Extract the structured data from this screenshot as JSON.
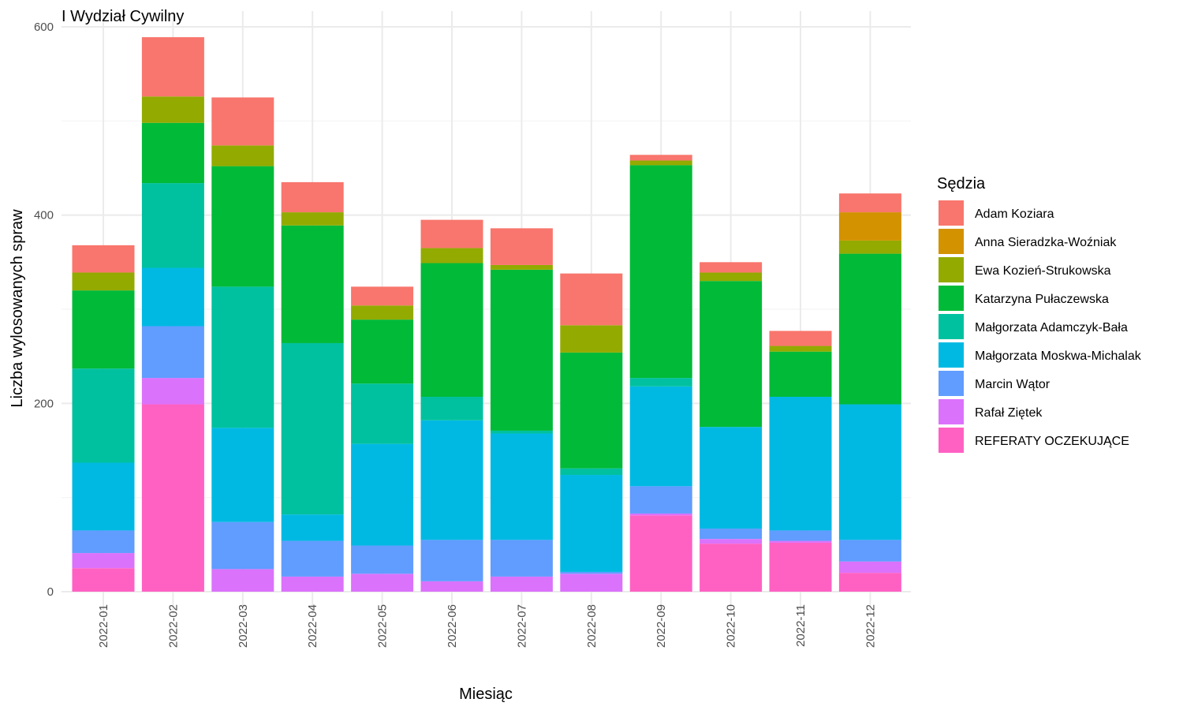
{
  "chart_data": {
    "type": "bar",
    "stacked": true,
    "title": "I Wydział Cywilny",
    "xlabel": "Miesiąc",
    "ylabel": "Liczba wylosowanych spraw",
    "ylim": [
      0,
      600
    ],
    "yticks": [
      0,
      200,
      400,
      600
    ],
    "grid": true,
    "legend_position": "right",
    "legend_title": "Sędzia",
    "categories": [
      "2022-01",
      "2022-02",
      "2022-03",
      "2022-04",
      "2022-05",
      "2022-06",
      "2022-07",
      "2022-08",
      "2022-09",
      "2022-10",
      "2022-11",
      "2022-12"
    ],
    "series": [
      {
        "name": "Adam Koziara",
        "color": "#F8766D",
        "values": [
          29,
          63,
          51,
          32,
          20,
          30,
          39,
          55,
          6,
          11,
          16,
          20
        ]
      },
      {
        "name": "Anna Sieradzka-Woźniak",
        "color": "#D39200",
        "values": [
          0,
          0,
          0,
          0,
          0,
          0,
          0,
          0,
          0,
          0,
          0,
          30
        ]
      },
      {
        "name": "Ewa Kozień-Strukowska",
        "color": "#93AA00",
        "values": [
          19,
          28,
          22,
          14,
          15,
          16,
          5,
          29,
          5,
          9,
          6,
          14
        ]
      },
      {
        "name": "Katarzyna Pułaczewska",
        "color": "#00BA38",
        "values": [
          83,
          64,
          128,
          125,
          68,
          142,
          171,
          123,
          226,
          155,
          48,
          160
        ]
      },
      {
        "name": "Małgorzata Adamczyk-Bała",
        "color": "#00C19F",
        "values": [
          100,
          90,
          150,
          182,
          64,
          25,
          3,
          7,
          9,
          0,
          0,
          0
        ]
      },
      {
        "name": "Małgorzata Moskwa-Michalak",
        "color": "#00B9E3",
        "values": [
          72,
          62,
          100,
          28,
          108,
          127,
          113,
          103,
          106,
          108,
          142,
          144
        ]
      },
      {
        "name": "Marcin Wątor",
        "color": "#619CFF",
        "values": [
          24,
          55,
          50,
          38,
          30,
          44,
          39,
          2,
          29,
          11,
          11,
          23
        ]
      },
      {
        "name": "Rafał Ziętek",
        "color": "#DB72FB",
        "values": [
          16,
          28,
          24,
          16,
          19,
          11,
          16,
          19,
          2,
          5,
          2,
          12
        ]
      },
      {
        "name": "REFERATY OCZEKUJĄCE",
        "color": "#FF61C3",
        "values": [
          25,
          199,
          0,
          0,
          0,
          0,
          0,
          0,
          81,
          51,
          52,
          20
        ]
      }
    ]
  }
}
